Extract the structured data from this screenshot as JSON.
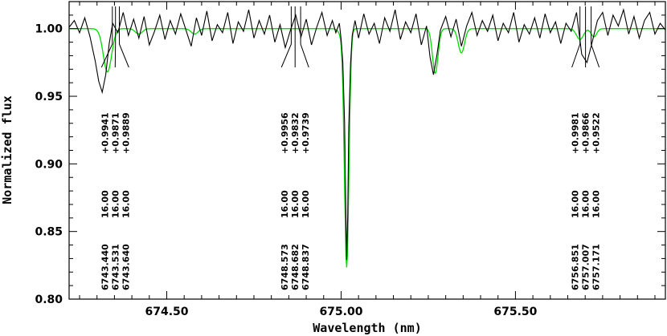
{
  "chart_data": {
    "type": "line",
    "title": "",
    "xlabel": "Wavelength (nm)",
    "ylabel": "Normalized flux",
    "xlim": [
      674.22,
      675.93
    ],
    "ylim": [
      0.8,
      1.02
    ],
    "x_ticks": [
      674.5,
      675.0,
      675.5
    ],
    "x_tick_labels": [
      "674.50",
      "675.00",
      "675.50"
    ],
    "y_ticks": [
      0.8,
      0.85,
      0.9,
      0.95,
      1.0
    ],
    "y_tick_labels": [
      "0.80",
      "0.85",
      "0.90",
      "0.95",
      "1.00"
    ],
    "grid": false,
    "legend": "none",
    "colors": {
      "observed": "#000000",
      "model": "#00dd00"
    },
    "line_groups": [
      {
        "center": 674.352,
        "lines": [
          {
            "wavelength": 674.344,
            "wavelength_label": "6743.440",
            "strength": "16.00",
            "depth": "+0.9941"
          },
          {
            "wavelength": 674.353,
            "wavelength_label": "6743.531",
            "strength": "16.00",
            "depth": "+0.9871"
          },
          {
            "wavelength": 674.364,
            "wavelength_label": "6743.640",
            "strength": "16.00",
            "depth": "+0.9889"
          }
        ]
      },
      {
        "center": 674.868,
        "lines": [
          {
            "wavelength": 674.857,
            "wavelength_label": "6748.573",
            "strength": "16.00",
            "depth": "+0.9956"
          },
          {
            "wavelength": 674.868,
            "wavelength_label": "6748.682",
            "strength": "16.00",
            "depth": "+0.9832"
          },
          {
            "wavelength": 674.884,
            "wavelength_label": "6748.837",
            "strength": "16.00",
            "depth": "+0.9739"
          }
        ]
      },
      {
        "center": 675.701,
        "lines": [
          {
            "wavelength": 675.685,
            "wavelength_label": "6756.851",
            "strength": "16.00",
            "depth": "+0.9981"
          },
          {
            "wavelength": 675.701,
            "wavelength_label": "6757.007",
            "strength": "16.00",
            "depth": "+0.9866"
          },
          {
            "wavelength": 675.717,
            "wavelength_label": "6757.171",
            "strength": "16.00",
            "depth": "+0.9522"
          }
        ]
      }
    ],
    "model_lines": [
      {
        "center": 674.33,
        "depth": 0.032,
        "sigma": 0.012
      },
      {
        "center": 674.42,
        "depth": 0.004,
        "sigma": 0.01
      },
      {
        "center": 674.58,
        "depth": 0.004,
        "sigma": 0.01
      },
      {
        "center": 675.0,
        "depth": 0.004,
        "sigma": 0.008
      },
      {
        "center": 675.016,
        "depth": 0.176,
        "sigma": 0.0065
      },
      {
        "center": 675.27,
        "depth": 0.033,
        "sigma": 0.008
      },
      {
        "center": 675.345,
        "depth": 0.018,
        "sigma": 0.009
      },
      {
        "center": 675.685,
        "depth": 0.008,
        "sigma": 0.01
      },
      {
        "center": 675.725,
        "depth": 0.006,
        "sigma": 0.008
      }
    ],
    "series": [
      {
        "key": "observed",
        "x": [
          674.22,
          674.235,
          674.25,
          674.265,
          674.28,
          674.295,
          674.305,
          674.315,
          674.325,
          674.335,
          674.345,
          674.36,
          674.375,
          674.39,
          674.405,
          674.42,
          674.435,
          674.45,
          674.465,
          674.48,
          674.495,
          674.51,
          674.525,
          674.54,
          674.555,
          674.57,
          674.585,
          674.6,
          674.615,
          674.63,
          674.645,
          674.66,
          674.675,
          674.69,
          674.705,
          674.72,
          674.735,
          674.75,
          674.765,
          674.78,
          674.795,
          674.81,
          674.825,
          674.84,
          674.855,
          674.87,
          674.885,
          674.9,
          674.915,
          674.93,
          674.945,
          674.96,
          674.975,
          674.985,
          674.995,
          675.0,
          675.005,
          675.01,
          675.013,
          675.016,
          675.019,
          675.022,
          675.027,
          675.032,
          675.04,
          675.05,
          675.065,
          675.08,
          675.095,
          675.11,
          675.125,
          675.14,
          675.155,
          675.17,
          675.185,
          675.2,
          675.215,
          675.23,
          675.245,
          675.255,
          675.265,
          675.275,
          675.285,
          675.3,
          675.315,
          675.33,
          675.345,
          675.36,
          675.375,
          675.39,
          675.405,
          675.42,
          675.435,
          675.45,
          675.465,
          675.48,
          675.495,
          675.51,
          675.525,
          675.54,
          675.555,
          675.57,
          675.585,
          675.6,
          675.615,
          675.63,
          675.645,
          675.66,
          675.675,
          675.69,
          675.705,
          675.72,
          675.735,
          675.75,
          675.765,
          675.78,
          675.795,
          675.81,
          675.825,
          675.84,
          675.855,
          675.87,
          675.885,
          675.9,
          675.915,
          675.93
        ],
        "y": [
          1.001,
          1.006,
          0.997,
          1.008,
          0.994,
          0.976,
          0.961,
          0.953,
          0.966,
          0.989,
          1.004,
          0.997,
          1.012,
          0.995,
          1.007,
          0.993,
          1.009,
          0.988,
          0.998,
          1.01,
          0.992,
          1.006,
          0.996,
          1.011,
          0.999,
          0.987,
          1.008,
          0.995,
          1.013,
          0.991,
          1.003,
          0.997,
          1.012,
          0.989,
          1.005,
          0.998,
          1.014,
          0.993,
          1.006,
          0.996,
          1.01,
          0.99,
          1.003,
          0.986,
          0.999,
          1.01,
          0.994,
          1.007,
          0.988,
          1.001,
          1.012,
          0.995,
          1.006,
          0.997,
          1.004,
          0.992,
          0.975,
          0.93,
          0.874,
          0.829,
          0.862,
          0.927,
          0.974,
          0.995,
          1.006,
          0.993,
          1.011,
          0.996,
          1.004,
          0.989,
          1.008,
          0.998,
          1.014,
          0.992,
          1.005,
          0.997,
          1.011,
          0.988,
          1.002,
          0.979,
          0.966,
          0.981,
          0.999,
          1.009,
          0.994,
          1.007,
          0.987,
          1.002,
          1.012,
          0.995,
          1.006,
          0.998,
          1.01,
          0.991,
          1.004,
          0.997,
          1.012,
          0.99,
          1.003,
          0.996,
          1.008,
          0.993,
          1.011,
          0.997,
          1.005,
          0.989,
          1.004,
          0.998,
          1.012,
          0.981,
          0.975,
          0.99,
          1.006,
          1.012,
          0.995,
          1.01,
          1.002,
          1.014,
          0.996,
          1.009,
          0.993,
          1.006,
          1.012,
          0.996,
          1.004,
          0.999
        ]
      },
      {
        "key": "model",
        "generated_from": "model_lines"
      }
    ]
  }
}
